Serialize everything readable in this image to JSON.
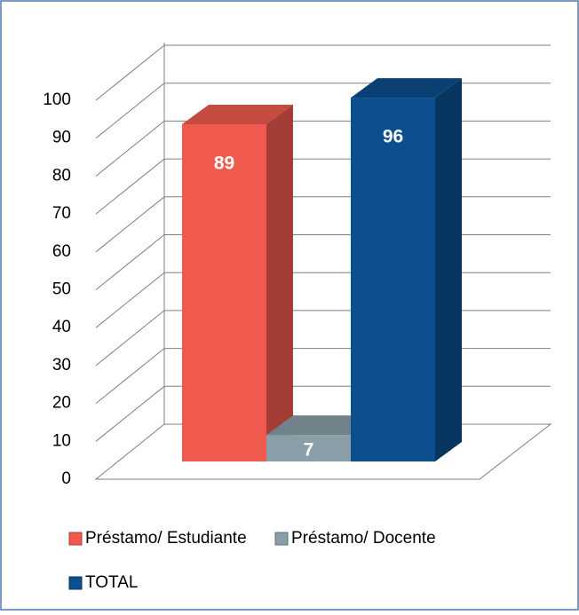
{
  "chart_data": {
    "type": "bar3d",
    "categories": [
      null
    ],
    "series": [
      {
        "name": "Préstamo/ Estudiante",
        "color": "#f05a4e",
        "values": [
          89
        ]
      },
      {
        "name": "Préstamo/ Docente",
        "color": "#8a9ea8",
        "values": [
          7
        ]
      },
      {
        "name": "TOTAL",
        "color": "#0b4f8f",
        "values": [
          96
        ]
      }
    ],
    "ylim": [
      0,
      100
    ],
    "yticks": [
      0,
      10,
      20,
      30,
      40,
      50,
      60,
      70,
      80,
      90,
      100
    ],
    "grid": true,
    "legend": "bottom"
  }
}
